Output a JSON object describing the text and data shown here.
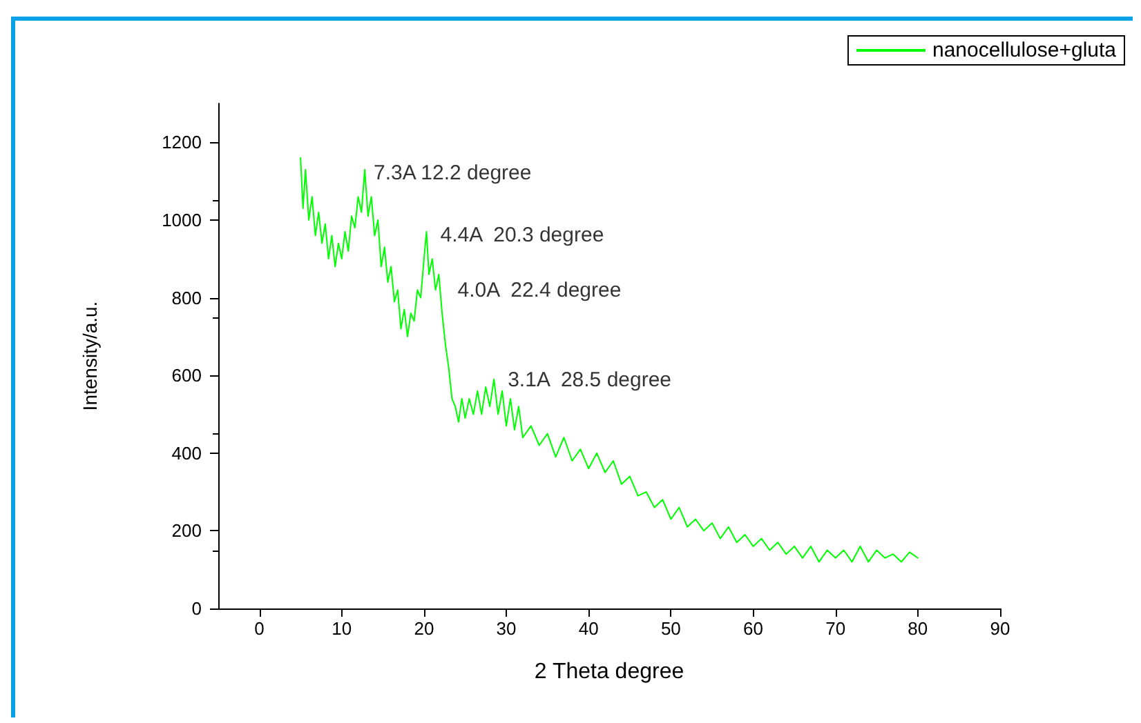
{
  "chart_data": {
    "type": "line",
    "xlabel": "2 Theta degree",
    "ylabel": "Intensity/a.u.",
    "xlim": [
      -5,
      90
    ],
    "xticks": [
      0,
      10,
      20,
      30,
      40,
      50,
      60,
      70,
      80,
      90
    ],
    "ylim": [
      0,
      1300
    ],
    "yticks": [
      0,
      200,
      400,
      600,
      800,
      1000,
      1200
    ],
    "grid": false,
    "legend": "top right",
    "marker": "none",
    "line_style": "solid",
    "x": [
      5,
      5.3,
      5.6,
      6,
      6.4,
      6.8,
      7.2,
      7.6,
      8,
      8.4,
      8.8,
      9.2,
      9.6,
      10,
      10.4,
      10.8,
      11.2,
      11.6,
      12,
      12.4,
      12.8,
      13.2,
      13.6,
      14,
      14.4,
      14.8,
      15.2,
      15.6,
      16,
      16.4,
      16.8,
      17.2,
      17.6,
      18,
      18.4,
      18.8,
      19.2,
      19.6,
      20,
      20.3,
      20.6,
      21,
      21.4,
      21.8,
      22.2,
      22.6,
      23,
      23.4,
      23.8,
      24.2,
      24.6,
      25,
      25.5,
      26,
      26.5,
      27,
      27.5,
      28,
      28.5,
      29,
      29.5,
      30,
      30.5,
      31,
      31.5,
      32,
      33,
      34,
      35,
      36,
      37,
      38,
      39,
      40,
      41,
      42,
      43,
      44,
      45,
      46,
      47,
      48,
      49,
      50,
      51,
      52,
      53,
      54,
      55,
      56,
      57,
      58,
      59,
      60,
      61,
      62,
      63,
      64,
      65,
      66,
      67,
      68,
      69,
      70,
      71,
      72,
      73,
      74,
      75,
      76,
      77,
      78,
      79,
      80
    ],
    "series": [
      {
        "name": "nanocellulose+gluta",
        "color": "#00ff00",
        "values": [
          1160,
          1030,
          1130,
          1000,
          1060,
          960,
          1020,
          940,
          990,
          900,
          960,
          880,
          940,
          900,
          970,
          920,
          1010,
          980,
          1060,
          1020,
          1130,
          1010,
          1060,
          960,
          1000,
          880,
          930,
          840,
          880,
          790,
          820,
          720,
          770,
          700,
          760,
          740,
          820,
          800,
          900,
          970,
          860,
          900,
          820,
          860,
          760,
          680,
          620,
          540,
          520,
          480,
          540,
          490,
          540,
          500,
          560,
          500,
          570,
          520,
          590,
          500,
          560,
          470,
          540,
          460,
          520,
          440,
          470,
          420,
          450,
          390,
          440,
          380,
          410,
          360,
          400,
          350,
          380,
          320,
          340,
          290,
          300,
          260,
          280,
          230,
          260,
          210,
          230,
          200,
          220,
          180,
          210,
          170,
          190,
          160,
          180,
          150,
          170,
          140,
          160,
          130,
          160,
          120,
          150,
          130,
          150,
          120,
          160,
          120,
          150,
          130,
          140,
          120,
          145,
          130
        ]
      }
    ],
    "annotations": [
      {
        "text": "7.3A 12.2 degree",
        "x": 12.2,
        "y": 1120
      },
      {
        "text": "4.4A  20.3 degree",
        "x": 20.3,
        "y": 960
      },
      {
        "text": "4.0A  22.4 degree",
        "x": 22.4,
        "y": 818
      },
      {
        "text": "3.1A  28.5 degree",
        "x": 28.5,
        "y": 588
      }
    ]
  }
}
